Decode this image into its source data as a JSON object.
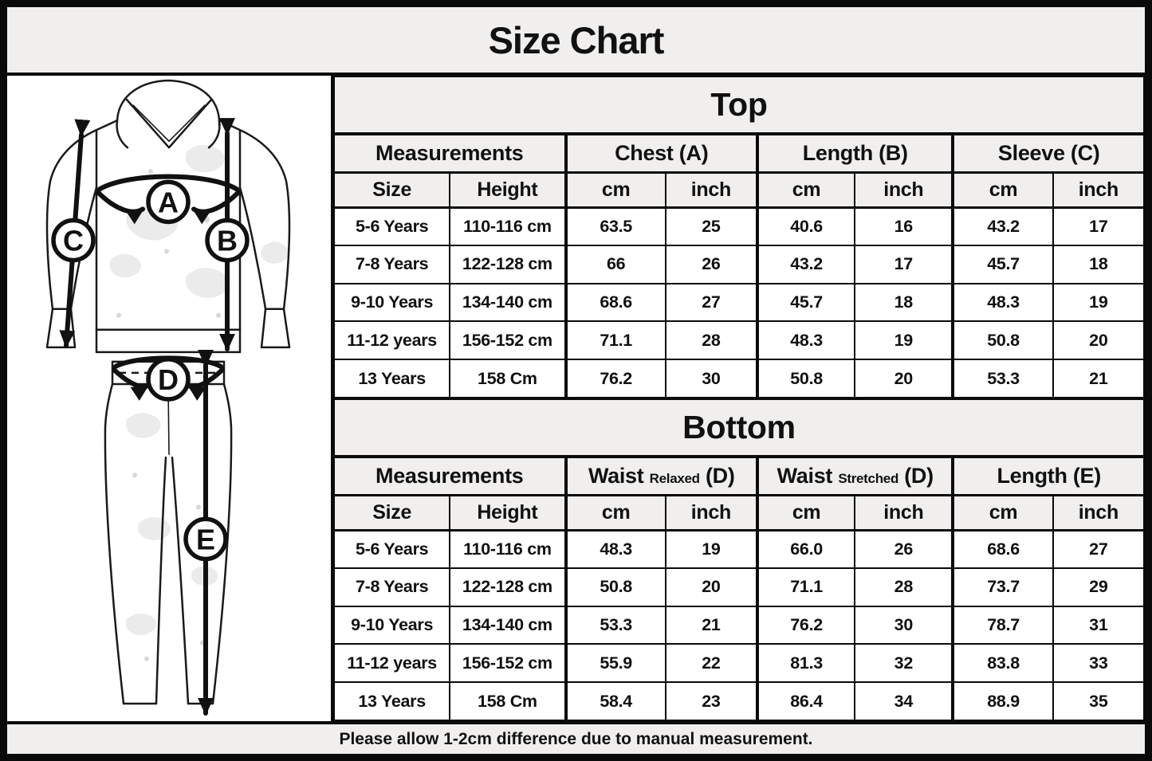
{
  "title": "Size Chart",
  "footer_note": "Please allow 1-2cm difference due to manual measurement.",
  "colors": {
    "band_bg": "#f0efee",
    "cell_bg": "#ffffff",
    "border": "#0a0a0a",
    "text": "#111111"
  },
  "diagram": {
    "markers": [
      "A",
      "B",
      "C",
      "D",
      "E"
    ]
  },
  "top_table": {
    "section_title": "Top",
    "group_headers": [
      {
        "text": "Measurements"
      },
      {
        "text": "Chest (A)"
      },
      {
        "text": "Length (B)"
      },
      {
        "text": "Sleeve (C)"
      }
    ],
    "sub_headers": [
      "Size",
      "Height",
      "cm",
      "inch",
      "cm",
      "inch",
      "cm",
      "inch"
    ],
    "rows": [
      [
        "5-6 Years",
        "110-116 cm",
        "63.5",
        "25",
        "40.6",
        "16",
        "43.2",
        "17"
      ],
      [
        "7-8 Years",
        "122-128 cm",
        "66",
        "26",
        "43.2",
        "17",
        "45.7",
        "18"
      ],
      [
        "9-10 Years",
        "134-140 cm",
        "68.6",
        "27",
        "45.7",
        "18",
        "48.3",
        "19"
      ],
      [
        "11-12 years",
        "156-152 cm",
        "71.1",
        "28",
        "48.3",
        "19",
        "50.8",
        "20"
      ],
      [
        "13 Years",
        "158 Cm",
        "76.2",
        "30",
        "50.8",
        "20",
        "53.3",
        "21"
      ]
    ]
  },
  "bottom_table": {
    "section_title": "Bottom",
    "group_headers": [
      {
        "text": "Measurements"
      },
      {
        "main": "Waist",
        "sub": "Relaxed",
        "suffix": "(D)"
      },
      {
        "main": "Waist",
        "sub": "Stretched",
        "suffix": "(D)"
      },
      {
        "text": "Length (E)"
      }
    ],
    "sub_headers": [
      "Size",
      "Height",
      "cm",
      "inch",
      "cm",
      "inch",
      "cm",
      "inch"
    ],
    "rows": [
      [
        "5-6 Years",
        "110-116 cm",
        "48.3",
        "19",
        "66.0",
        "26",
        "68.6",
        "27"
      ],
      [
        "7-8 Years",
        "122-128 cm",
        "50.8",
        "20",
        "71.1",
        "28",
        "73.7",
        "29"
      ],
      [
        "9-10 Years",
        "134-140 cm",
        "53.3",
        "21",
        "76.2",
        "30",
        "78.7",
        "31"
      ],
      [
        "11-12 years",
        "156-152 cm",
        "55.9",
        "22",
        "81.3",
        "32",
        "83.8",
        "33"
      ],
      [
        "13 Years",
        "158 Cm",
        "58.4",
        "23",
        "86.4",
        "34",
        "88.9",
        "35"
      ]
    ]
  }
}
